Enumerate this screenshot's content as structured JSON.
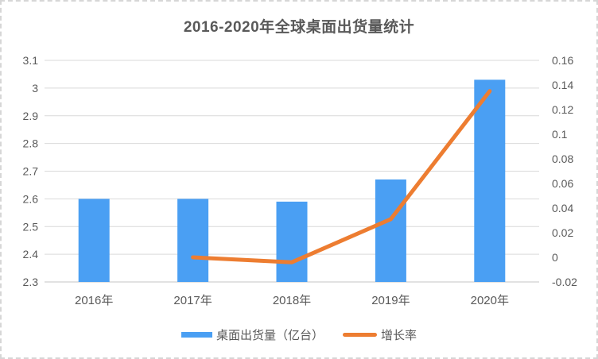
{
  "chart_title": "2016-2020年全球桌面出货量统计",
  "chart_data": {
    "type": "bar",
    "title": "2016-2020年全球桌面出货量统计",
    "categories": [
      "2016年",
      "2017年",
      "2018年",
      "2019年",
      "2020年"
    ],
    "series": [
      {
        "name": "桌面出货量（亿台）",
        "type": "bar",
        "axis": "left",
        "color": "#4A9FF3",
        "values": [
          2.6,
          2.6,
          2.59,
          2.67,
          3.03
        ]
      },
      {
        "name": "增长率",
        "type": "line",
        "axis": "right",
        "color": "#ED7D31",
        "values": [
          null,
          0,
          -0.004,
          0.031,
          0.135
        ]
      }
    ],
    "left_axis": {
      "min": 2.3,
      "max": 3.1,
      "step": 0.1,
      "tick_labels": [
        "3.1",
        "3",
        "2.9",
        "2.8",
        "2.7",
        "2.6",
        "2.5",
        "2.4",
        "2.3"
      ]
    },
    "right_axis": {
      "min": -0.02,
      "max": 0.16,
      "step": 0.02,
      "tick_labels": [
        "0.16",
        "0.14",
        "0.12",
        "0.1",
        "0.08",
        "0.06",
        "0.04",
        "0.02",
        "0",
        "-0.02"
      ]
    },
    "grid": true,
    "legend_position": "bottom"
  },
  "legend": {
    "items": [
      {
        "label": "桌面出货量（亿台）",
        "color": "#4A9FF3",
        "marker": "bar"
      },
      {
        "label": "增长率",
        "color": "#ED7D31",
        "marker": "line"
      }
    ]
  },
  "colors": {
    "bar": "#4A9FF3",
    "line": "#ED7D31",
    "gridline": "#D9D9D9",
    "axis_line": "#C6C6C6",
    "text": "#595959",
    "card_border": "#D6D6D6",
    "background": "#FFFFFF"
  }
}
